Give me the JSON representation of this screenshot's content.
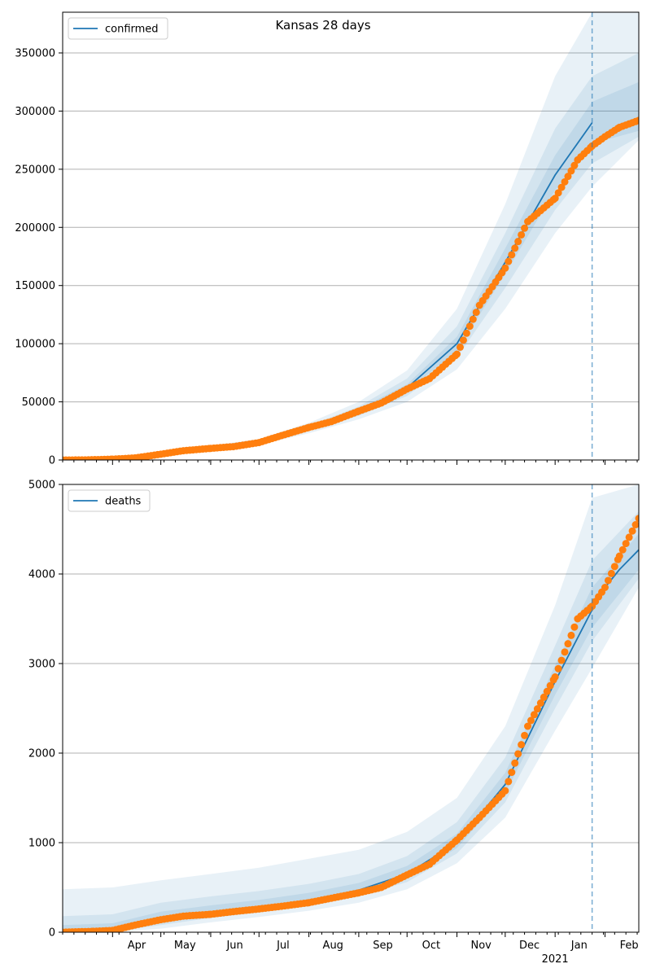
{
  "title": "Kansas 28 days",
  "colors": {
    "model": "#1f77b4",
    "observed": "#ff7f0e",
    "band": "#1f77b4",
    "grid": "#b0b0b0",
    "cutoff": "#1f77b4"
  },
  "x_axis": {
    "start": "2020-03-01",
    "end": "2021-02-22",
    "month_ticks": [
      {
        "date": "2020-04-01",
        "label": "Apr"
      },
      {
        "date": "2020-05-01",
        "label": "May"
      },
      {
        "date": "2020-06-01",
        "label": "Jun"
      },
      {
        "date": "2020-07-01",
        "label": "Jul"
      },
      {
        "date": "2020-08-01",
        "label": "Aug"
      },
      {
        "date": "2020-09-01",
        "label": "Sep"
      },
      {
        "date": "2020-10-01",
        "label": "Oct"
      },
      {
        "date": "2020-11-01",
        "label": "Nov"
      },
      {
        "date": "2020-12-01",
        "label": "Dec"
      },
      {
        "date": "2021-01-01",
        "label": "Jan"
      },
      {
        "date": "2021-02-01",
        "label": "Feb"
      }
    ],
    "year_label": {
      "date": "2021-01-01",
      "label": "2021"
    },
    "cutoff_date": "2021-01-24"
  },
  "chart_data": [
    {
      "type": "line",
      "legend": "confirmed",
      "legend_position": "top-left",
      "grid": "y",
      "ylim": [
        0,
        385000
      ],
      "yticks": [
        0,
        50000,
        100000,
        150000,
        200000,
        250000,
        300000,
        350000
      ],
      "model_line": [
        [
          "2020-03-01",
          0
        ],
        [
          "2020-04-01",
          1000
        ],
        [
          "2020-05-01",
          5000
        ],
        [
          "2020-06-01",
          10000
        ],
        [
          "2020-07-01",
          15000
        ],
        [
          "2020-08-01",
          27000
        ],
        [
          "2020-09-01",
          42000
        ],
        [
          "2020-10-01",
          62000
        ],
        [
          "2020-11-01",
          100000
        ],
        [
          "2020-12-01",
          170000
        ],
        [
          "2021-01-01",
          245000
        ],
        [
          "2021-01-24",
          290000
        ]
      ],
      "bands": [
        {
          "lo": [
            [
              "2020-03-01",
              0
            ],
            [
              "2020-04-01",
              500
            ],
            [
              "2020-05-01",
              3500
            ],
            [
              "2020-06-01",
              8500
            ],
            [
              "2020-07-01",
              13000
            ],
            [
              "2020-08-01",
              23000
            ],
            [
              "2020-09-01",
              35000
            ],
            [
              "2020-10-01",
              50000
            ],
            [
              "2020-11-01",
              78000
            ],
            [
              "2020-12-01",
              130000
            ],
            [
              "2021-01-01",
              195000
            ],
            [
              "2021-01-24",
              235000
            ],
            [
              "2021-02-22",
              275000
            ]
          ],
          "hi": [
            [
              "2020-03-01",
              500
            ],
            [
              "2020-04-01",
              2000
            ],
            [
              "2020-05-01",
              7000
            ],
            [
              "2020-06-01",
              12500
            ],
            [
              "2020-07-01",
              18000
            ],
            [
              "2020-08-01",
              32000
            ],
            [
              "2020-09-01",
              50000
            ],
            [
              "2020-10-01",
              77000
            ],
            [
              "2020-11-01",
              130000
            ],
            [
              "2020-12-01",
              220000
            ],
            [
              "2021-01-01",
              330000
            ],
            [
              "2021-01-24",
              385000
            ],
            [
              "2021-02-22",
              385000
            ]
          ]
        },
        {
          "lo": [
            [
              "2020-03-01",
              0
            ],
            [
              "2020-04-01",
              700
            ],
            [
              "2020-05-01",
              4000
            ],
            [
              "2020-06-01",
              9000
            ],
            [
              "2020-07-01",
              14000
            ],
            [
              "2020-08-01",
              25000
            ],
            [
              "2020-09-01",
              38000
            ],
            [
              "2020-10-01",
              55000
            ],
            [
              "2020-11-01",
              88000
            ],
            [
              "2020-12-01",
              148000
            ],
            [
              "2021-01-01",
              215000
            ],
            [
              "2021-01-24",
              255000
            ],
            [
              "2021-02-22",
              278000
            ]
          ],
          "hi": [
            [
              "2020-03-01",
              300
            ],
            [
              "2020-04-01",
              1600
            ],
            [
              "2020-05-01",
              6200
            ],
            [
              "2020-06-01",
              11500
            ],
            [
              "2020-07-01",
              16500
            ],
            [
              "2020-08-01",
              29500
            ],
            [
              "2020-09-01",
              46000
            ],
            [
              "2020-10-01",
              70000
            ],
            [
              "2020-11-01",
              115000
            ],
            [
              "2020-12-01",
              195000
            ],
            [
              "2021-01-01",
              285000
            ],
            [
              "2021-01-24",
              330000
            ],
            [
              "2021-02-22",
              350000
            ]
          ]
        },
        {
          "lo": [
            [
              "2020-03-01",
              0
            ],
            [
              "2020-04-01",
              850
            ],
            [
              "2020-05-01",
              4500
            ],
            [
              "2020-06-01",
              9500
            ],
            [
              "2020-07-01",
              14500
            ],
            [
              "2020-08-01",
              26000
            ],
            [
              "2020-09-01",
              40000
            ],
            [
              "2020-10-01",
              59000
            ],
            [
              "2020-11-01",
              94000
            ],
            [
              "2020-12-01",
              160000
            ],
            [
              "2021-01-01",
              232000
            ],
            [
              "2021-01-24",
              272000
            ],
            [
              "2021-02-22",
              283000
            ]
          ],
          "hi": [
            [
              "2020-03-01",
              150
            ],
            [
              "2020-04-01",
              1300
            ],
            [
              "2020-05-01",
              5500
            ],
            [
              "2020-06-01",
              10500
            ],
            [
              "2020-07-01",
              15500
            ],
            [
              "2020-08-01",
              28000
            ],
            [
              "2020-09-01",
              44000
            ],
            [
              "2020-10-01",
              65000
            ],
            [
              "2020-11-01",
              106000
            ],
            [
              "2020-12-01",
              182000
            ],
            [
              "2021-01-01",
              262000
            ],
            [
              "2021-01-24",
              308000
            ],
            [
              "2021-02-22",
              325000
            ]
          ]
        }
      ],
      "observed": [
        [
          "2020-03-01",
          0
        ],
        [
          "2020-03-15",
          100
        ],
        [
          "2020-04-01",
          700
        ],
        [
          "2020-04-15",
          1800
        ],
        [
          "2020-05-01",
          5000
        ],
        [
          "2020-05-15",
          8000
        ],
        [
          "2020-06-01",
          10000
        ],
        [
          "2020-06-15",
          11500
        ],
        [
          "2020-07-01",
          15000
        ],
        [
          "2020-07-15",
          21000
        ],
        [
          "2020-08-01",
          28000
        ],
        [
          "2020-08-15",
          33000
        ],
        [
          "2020-09-01",
          42000
        ],
        [
          "2020-09-15",
          49000
        ],
        [
          "2020-10-01",
          61000
        ],
        [
          "2020-10-15",
          70000
        ],
        [
          "2020-11-01",
          91000
        ],
        [
          "2020-11-15",
          133000
        ],
        [
          "2020-12-01",
          165000
        ],
        [
          "2020-12-15",
          205000
        ],
        [
          "2021-01-01",
          225000
        ],
        [
          "2021-01-15",
          258000
        ],
        [
          "2021-01-24",
          270000
        ],
        [
          "2021-02-01",
          278000
        ],
        [
          "2021-02-10",
          286000
        ],
        [
          "2021-02-22",
          292000
        ]
      ]
    },
    {
      "type": "line",
      "legend": "deaths",
      "legend_position": "top-left",
      "grid": "y",
      "ylim": [
        0,
        5000
      ],
      "yticks": [
        0,
        1000,
        2000,
        3000,
        4000,
        5000
      ],
      "model_line": [
        [
          "2020-03-01",
          0
        ],
        [
          "2020-04-01",
          20
        ],
        [
          "2020-05-01",
          130
        ],
        [
          "2020-06-01",
          220
        ],
        [
          "2020-07-01",
          280
        ],
        [
          "2020-08-01",
          350
        ],
        [
          "2020-09-01",
          470
        ],
        [
          "2020-10-01",
          650
        ],
        [
          "2020-11-01",
          1000
        ],
        [
          "2020-12-01",
          1650
        ],
        [
          "2021-01-01",
          2800
        ],
        [
          "2021-01-24",
          3600
        ],
        [
          "2021-02-01",
          3850
        ],
        [
          "2021-02-10",
          4050
        ],
        [
          "2021-02-22",
          4270
        ]
      ],
      "bands": [
        {
          "lo": [
            [
              "2020-03-01",
              0
            ],
            [
              "2020-04-01",
              0
            ],
            [
              "2020-05-01",
              40
            ],
            [
              "2020-06-01",
              110
            ],
            [
              "2020-07-01",
              170
            ],
            [
              "2020-08-01",
              240
            ],
            [
              "2020-09-01",
              330
            ],
            [
              "2020-10-01",
              480
            ],
            [
              "2020-11-01",
              770
            ],
            [
              "2020-12-01",
              1280
            ],
            [
              "2021-01-01",
              2250
            ],
            [
              "2021-01-24",
              2950
            ],
            [
              "2021-02-22",
              3850
            ]
          ],
          "hi": [
            [
              "2020-03-01",
              480
            ],
            [
              "2020-04-01",
              500
            ],
            [
              "2020-05-01",
              580
            ],
            [
              "2020-06-01",
              650
            ],
            [
              "2020-07-01",
              720
            ],
            [
              "2020-08-01",
              820
            ],
            [
              "2020-09-01",
              920
            ],
            [
              "2020-10-01",
              1120
            ],
            [
              "2020-11-01",
              1500
            ],
            [
              "2020-12-01",
              2300
            ],
            [
              "2021-01-01",
              3650
            ],
            [
              "2021-01-24",
              4850
            ],
            [
              "2021-02-22",
              5000
            ]
          ]
        },
        {
          "lo": [
            [
              "2020-03-01",
              0
            ],
            [
              "2020-04-01",
              5
            ],
            [
              "2020-05-01",
              80
            ],
            [
              "2020-06-01",
              160
            ],
            [
              "2020-07-01",
              220
            ],
            [
              "2020-08-01",
              290
            ],
            [
              "2020-09-01",
              400
            ],
            [
              "2020-10-01",
              560
            ],
            [
              "2020-11-01",
              880
            ],
            [
              "2020-12-01",
              1450
            ],
            [
              "2021-01-01",
              2500
            ],
            [
              "2021-01-24",
              3250
            ],
            [
              "2021-02-22",
              3950
            ]
          ],
          "hi": [
            [
              "2020-03-01",
              180
            ],
            [
              "2020-04-01",
              200
            ],
            [
              "2020-05-01",
              330
            ],
            [
              "2020-06-01",
              400
            ],
            [
              "2020-07-01",
              460
            ],
            [
              "2020-08-01",
              540
            ],
            [
              "2020-09-01",
              650
            ],
            [
              "2020-10-01",
              850
            ],
            [
              "2020-11-01",
              1230
            ],
            [
              "2020-12-01",
              1950
            ],
            [
              "2021-01-01",
              3200
            ],
            [
              "2021-01-24",
              4150
            ],
            [
              "2021-02-22",
              4700
            ]
          ]
        },
        {
          "lo": [
            [
              "2020-03-01",
              0
            ],
            [
              "2020-04-01",
              10
            ],
            [
              "2020-05-01",
              100
            ],
            [
              "2020-06-01",
              190
            ],
            [
              "2020-07-01",
              250
            ],
            [
              "2020-08-01",
              320
            ],
            [
              "2020-09-01",
              430
            ],
            [
              "2020-10-01",
              600
            ],
            [
              "2020-11-01",
              940
            ],
            [
              "2020-12-01",
              1550
            ],
            [
              "2021-01-01",
              2650
            ],
            [
              "2021-01-24",
              3400
            ],
            [
              "2021-02-22",
              4050
            ]
          ],
          "hi": [
            [
              "2020-03-01",
              80
            ],
            [
              "2020-04-01",
              100
            ],
            [
              "2020-05-01",
              230
            ],
            [
              "2020-06-01",
              300
            ],
            [
              "2020-07-01",
              360
            ],
            [
              "2020-08-01",
              440
            ],
            [
              "2020-09-01",
              550
            ],
            [
              "2020-10-01",
              740
            ],
            [
              "2020-11-01",
              1100
            ],
            [
              "2020-12-01",
              1780
            ],
            [
              "2021-01-01",
              2980
            ],
            [
              "2021-01-24",
              3850
            ],
            [
              "2021-02-22",
              4450
            ]
          ]
        }
      ],
      "observed": [
        [
          "2020-03-01",
          0
        ],
        [
          "2020-03-20",
          10
        ],
        [
          "2020-04-01",
          20
        ],
        [
          "2020-04-15",
          80
        ],
        [
          "2020-05-01",
          140
        ],
        [
          "2020-05-15",
          180
        ],
        [
          "2020-06-01",
          200
        ],
        [
          "2020-06-15",
          230
        ],
        [
          "2020-07-01",
          260
        ],
        [
          "2020-07-15",
          290
        ],
        [
          "2020-08-01",
          330
        ],
        [
          "2020-08-15",
          380
        ],
        [
          "2020-09-01",
          440
        ],
        [
          "2020-09-15",
          500
        ],
        [
          "2020-10-01",
          640
        ],
        [
          "2020-10-15",
          760
        ],
        [
          "2020-11-01",
          1030
        ],
        [
          "2020-11-15",
          1280
        ],
        [
          "2020-12-01",
          1580
        ],
        [
          "2020-12-15",
          2300
        ],
        [
          "2021-01-01",
          2850
        ],
        [
          "2021-01-15",
          3500
        ],
        [
          "2021-01-24",
          3640
        ],
        [
          "2021-02-01",
          3850
        ],
        [
          "2021-02-10",
          4200
        ],
        [
          "2021-02-22",
          4620
        ]
      ]
    }
  ]
}
